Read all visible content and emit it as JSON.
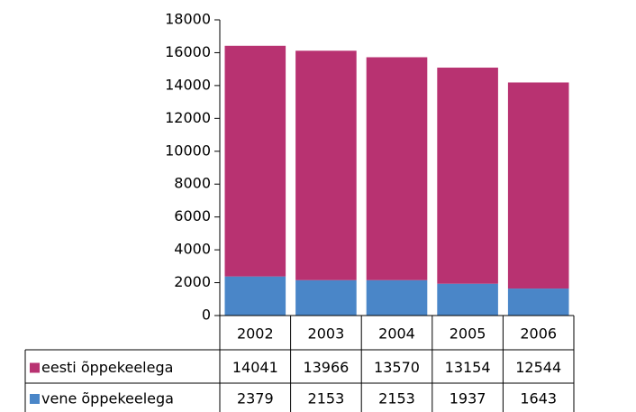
{
  "chart_data": {
    "type": "bar",
    "stacked": true,
    "categories": [
      "2002",
      "2003",
      "2004",
      "2005",
      "2006"
    ],
    "series": [
      {
        "name": "eesti õppekeelega",
        "color": "#b83271",
        "values": [
          14041,
          13966,
          13570,
          13154,
          12544
        ]
      },
      {
        "name": "vene õppekeelega",
        "color": "#4a86c8",
        "values": [
          2379,
          2153,
          2153,
          1937,
          1643
        ]
      }
    ],
    "ylim": [
      0,
      18000
    ],
    "yticks": [
      0,
      2000,
      4000,
      6000,
      8000,
      10000,
      12000,
      14000,
      16000,
      18000
    ],
    "grid": false,
    "legend": "table"
  }
}
